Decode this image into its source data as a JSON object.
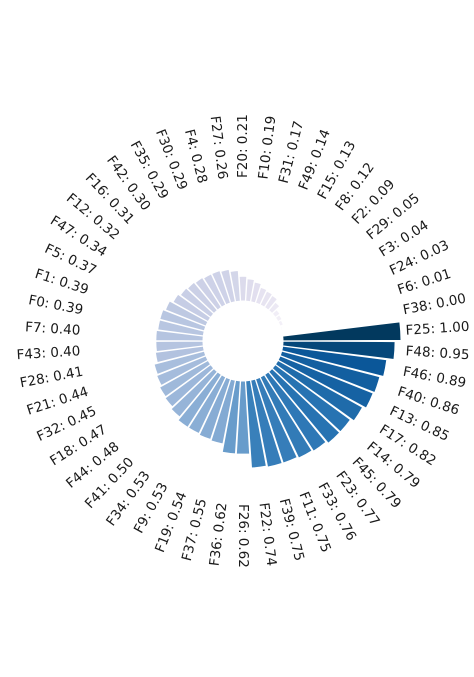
{
  "chart_data": {
    "type": "bar",
    "subtype": "circular",
    "color_scale": {
      "low": "#f7f4fa",
      "high": "#02395e"
    },
    "grid": false,
    "legend": false,
    "title": "",
    "max_value": 1.0,
    "categories": [
      "F25",
      "F48",
      "F46",
      "F40",
      "F13",
      "F17",
      "F14",
      "F45",
      "F23",
      "F33",
      "F11",
      "F39",
      "F22",
      "F26",
      "F36",
      "F37",
      "F19",
      "F9",
      "F34",
      "F41",
      "F44",
      "F18",
      "F32",
      "F21",
      "F28",
      "F43",
      "F7",
      "F0",
      "F1",
      "F5",
      "F47",
      "F12",
      "F16",
      "F42",
      "F35",
      "F30",
      "F4",
      "F27",
      "F20",
      "F10",
      "F31",
      "F49",
      "F15",
      "F8",
      "F2",
      "F29",
      "F3",
      "F24",
      "F6",
      "F38"
    ],
    "values": [
      1.0,
      0.95,
      0.89,
      0.86,
      0.85,
      0.82,
      0.79,
      0.79,
      0.77,
      0.76,
      0.75,
      0.75,
      0.74,
      0.62,
      0.62,
      0.55,
      0.54,
      0.53,
      0.53,
      0.5,
      0.48,
      0.47,
      0.45,
      0.44,
      0.41,
      0.4,
      0.4,
      0.39,
      0.39,
      0.37,
      0.34,
      0.32,
      0.31,
      0.3,
      0.29,
      0.29,
      0.28,
      0.26,
      0.21,
      0.19,
      0.17,
      0.14,
      0.13,
      0.12,
      0.09,
      0.05,
      0.04,
      0.03,
      0.01,
      0.0
    ],
    "labels": [
      "F25: 1.00",
      "F48: 0.95",
      "F46: 0.89",
      "F40: 0.86",
      "F13: 0.85",
      "F17: 0.82",
      "F14: 0.79",
      "F45: 0.79",
      "F23: 0.77",
      "F33: 0.76",
      "F11: 0.75",
      "F39: 0.75",
      "F22: 0.74",
      "F26: 0.62",
      "F36: 0.62",
      "F37: 0.55",
      "F19: 0.54",
      "F9: 0.53",
      "F34: 0.53",
      "F41: 0.50",
      "F44: 0.48",
      "F18: 0.47",
      "F32: 0.45",
      "F21: 0.44",
      "F28: 0.41",
      "F43: 0.40",
      "F7: 0.40",
      "F0: 0.39",
      "F1: 0.39",
      "F5: 0.37",
      "F47: 0.34",
      "F12: 0.32",
      "F16: 0.31",
      "F42: 0.30",
      "F35: 0.29",
      "F30: 0.29",
      "F4: 0.28",
      "F27: 0.26",
      "F20: 0.21",
      "F10: 0.19",
      "F31: 0.17",
      "F49: 0.14",
      "F15: 0.13",
      "F8: 0.12",
      "F2: 0.09",
      "F29: 0.05",
      "F3: 0.04",
      "F24: 0.03",
      "F6: 0.01",
      "F38: 0.00"
    ]
  }
}
